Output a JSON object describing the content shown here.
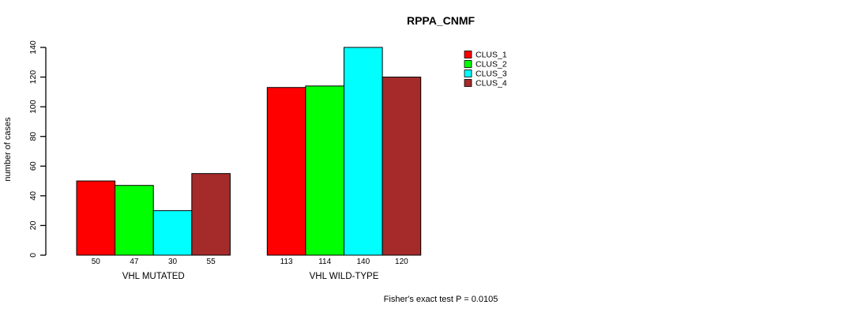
{
  "title": "RPPA_CNMF",
  "footer": "Fisher's exact test P = 0.0105",
  "colors": {
    "background": "#ffffff",
    "axis": "#000000",
    "bar_border": "#000000",
    "clus_1": "#ff0000",
    "clus_2": "#00ff00",
    "clus_3": "#00ffff",
    "clus_4": "#a52a2a"
  },
  "chart_data": {
    "type": "bar",
    "title": "RPPA_CNMF",
    "xlabel": "",
    "ylabel": "number of cases",
    "annotation": "Fisher's exact test P = 0.0105",
    "categories": [
      "VHL MUTATED",
      "VHL WILD-TYPE"
    ],
    "series": [
      {
        "name": "CLUS_1",
        "color": "#ff0000",
        "values": [
          50,
          113
        ]
      },
      {
        "name": "CLUS_2",
        "color": "#00ff00",
        "values": [
          47,
          114
        ]
      },
      {
        "name": "CLUS_3",
        "color": "#00ffff",
        "values": [
          30,
          140
        ]
      },
      {
        "name": "CLUS_4",
        "color": "#a52a2a",
        "values": [
          55,
          120
        ]
      }
    ],
    "ylim": [
      0,
      140
    ],
    "yticks": [
      0,
      20,
      40,
      60,
      80,
      100,
      120,
      140
    ],
    "grid": false,
    "legend_position": "top-right",
    "bar_value_labels_shown": true
  }
}
